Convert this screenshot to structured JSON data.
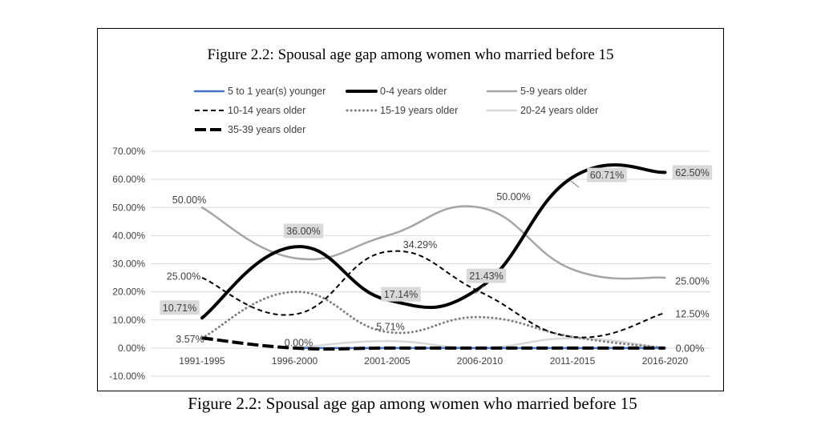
{
  "chart_data": {
    "type": "line",
    "title": "Figure 2.2: Spousal age gap among women who married before 15",
    "categories": [
      "1991-1995",
      "1996-2000",
      "2001-2005",
      "2006-2010",
      "2011-2015",
      "2016-2020"
    ],
    "y_ticks": [
      "70.00%",
      "60.00%",
      "50.00%",
      "40.00%",
      "30.00%",
      "20.00%",
      "10.00%",
      "0.00%",
      "-10.00%"
    ],
    "ylim": [
      -10,
      70
    ],
    "grid": true,
    "legend_position": "top",
    "series": [
      {
        "name": "5 to 1 year(s) younger",
        "values": [
          null,
          0,
          0,
          0,
          0,
          0
        ],
        "color": "#4472c4",
        "style": "solid"
      },
      {
        "name": "0-4 years older",
        "values": [
          10.71,
          36.0,
          17.14,
          21.43,
          60.71,
          62.5
        ],
        "color": "#000000",
        "style": "solid-thick"
      },
      {
        "name": "5-9 years older",
        "values": [
          50.0,
          32.0,
          40.0,
          50.0,
          28.0,
          25.0
        ],
        "color": "#a5a5a5",
        "style": "solid"
      },
      {
        "name": "10-14 years older",
        "values": [
          25.0,
          12.0,
          34.29,
          20.0,
          4.0,
          12.5
        ],
        "color": "#000000",
        "style": "dash"
      },
      {
        "name": "15-19 years older",
        "values": [
          3.57,
          20.0,
          5.71,
          11.0,
          4.0,
          0.0
        ],
        "color": "#7f7f7f",
        "style": "dot"
      },
      {
        "name": "20-24 years older",
        "values": [
          null,
          0.0,
          2.5,
          0.0,
          3.5,
          0.0
        ],
        "color": "#d9d9d9",
        "style": "solid"
      },
      {
        "name": "35-39 years older",
        "values": [
          3.57,
          0.0,
          0.0,
          0.0,
          0.0,
          0.0
        ],
        "color": "#000000",
        "style": "long-dash"
      }
    ],
    "data_labels": [
      {
        "series": 2,
        "index": 0,
        "text": "50.00%",
        "boxed": false
      },
      {
        "series": 2,
        "index": 3,
        "text": "50.00%",
        "boxed": false
      },
      {
        "series": 2,
        "index": 5,
        "text": "25.00%",
        "boxed": false
      },
      {
        "series": 1,
        "index": 0,
        "text": "10.71%",
        "boxed": true
      },
      {
        "series": 1,
        "index": 1,
        "text": "36.00%",
        "boxed": true
      },
      {
        "series": 1,
        "index": 2,
        "text": "17.14%",
        "boxed": true
      },
      {
        "series": 1,
        "index": 3,
        "text": "21.43%",
        "boxed": true
      },
      {
        "series": 1,
        "index": 4,
        "text": "60.71%",
        "boxed": true
      },
      {
        "series": 1,
        "index": 5,
        "text": "62.50%",
        "boxed": true
      },
      {
        "series": 3,
        "index": 0,
        "text": "25.00%",
        "boxed": false
      },
      {
        "series": 3,
        "index": 2,
        "text": "34.29%",
        "boxed": false
      },
      {
        "series": 3,
        "index": 5,
        "text": "12.50%",
        "boxed": false
      },
      {
        "series": 4,
        "index": 0,
        "text": "3.57%",
        "boxed": false
      },
      {
        "series": 4,
        "index": 2,
        "text": "5.71%",
        "boxed": false
      },
      {
        "series": 0,
        "index": 1,
        "text": "0.00%",
        "boxed": false
      },
      {
        "series": 0,
        "index": 5,
        "text": "0.00%",
        "boxed": false
      }
    ]
  },
  "caption": "Figure 2.2: Spousal age gap among women who married before 15"
}
